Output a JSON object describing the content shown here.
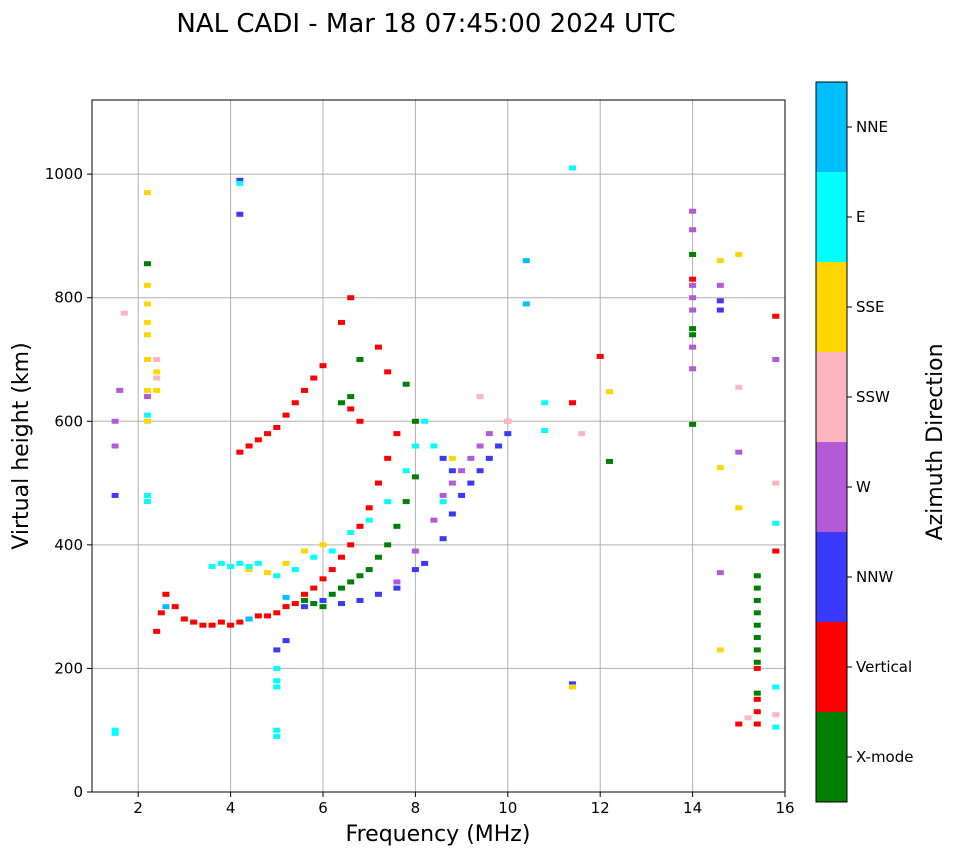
{
  "chart_data": {
    "type": "scatter",
    "title": "NAL CADI - Mar 18 07:45:00 2024 UTC",
    "xlabel": "Frequency (MHz)",
    "ylabel": "Virtual height (km)",
    "xlim": [
      1,
      16
    ],
    "ylim": [
      0,
      1120
    ],
    "xticks": [
      2,
      4,
      6,
      8,
      10,
      12,
      14,
      16
    ],
    "yticks": [
      0,
      200,
      400,
      600,
      800,
      1000
    ],
    "grid": true,
    "colorbar": {
      "label": "Azimuth Direction",
      "categories": [
        {
          "name": "X-mode",
          "color": "#008000"
        },
        {
          "name": "Vertical",
          "color": "#ff0000"
        },
        {
          "name": "NNW",
          "color": "#3a3aff"
        },
        {
          "name": "W",
          "color": "#b35ad6"
        },
        {
          "name": "SSW",
          "color": "#ffb6c1"
        },
        {
          "name": "SSE",
          "color": "#ffd700"
        },
        {
          "name": "E",
          "color": "#00ffff"
        },
        {
          "name": "NNE",
          "color": "#00bfff"
        }
      ]
    },
    "series": [
      {
        "name": "X-mode",
        "points": [
          [
            2.2,
            855
          ],
          [
            5.6,
            310
          ],
          [
            5.8,
            305
          ],
          [
            6.0,
            300
          ],
          [
            6.2,
            320
          ],
          [
            6.4,
            330
          ],
          [
            6.6,
            340
          ],
          [
            6.8,
            350
          ],
          [
            7.0,
            360
          ],
          [
            7.2,
            380
          ],
          [
            7.4,
            400
          ],
          [
            7.6,
            430
          ],
          [
            7.8,
            470
          ],
          [
            8.0,
            510
          ],
          [
            8.0,
            600
          ],
          [
            7.8,
            660
          ],
          [
            6.6,
            640
          ],
          [
            6.4,
            630
          ],
          [
            6.8,
            700
          ],
          [
            14.0,
            870
          ],
          [
            14.0,
            750
          ],
          [
            14.0,
            740
          ],
          [
            14.0,
            595
          ],
          [
            12.2,
            535
          ],
          [
            15.4,
            350
          ],
          [
            15.4,
            330
          ],
          [
            15.4,
            310
          ],
          [
            15.4,
            290
          ],
          [
            15.4,
            270
          ],
          [
            15.4,
            250
          ],
          [
            15.4,
            230
          ],
          [
            15.4,
            210
          ],
          [
            15.4,
            160
          ]
        ]
      },
      {
        "name": "Vertical",
        "points": [
          [
            2.4,
            260
          ],
          [
            2.5,
            290
          ],
          [
            2.6,
            320
          ],
          [
            2.8,
            300
          ],
          [
            3.0,
            280
          ],
          [
            3.2,
            275
          ],
          [
            3.4,
            270
          ],
          [
            3.6,
            270
          ],
          [
            3.8,
            275
          ],
          [
            4.0,
            270
          ],
          [
            4.2,
            275
          ],
          [
            4.4,
            280
          ],
          [
            4.6,
            285
          ],
          [
            4.8,
            285
          ],
          [
            5.0,
            290
          ],
          [
            5.2,
            300
          ],
          [
            5.4,
            305
          ],
          [
            5.6,
            320
          ],
          [
            5.8,
            330
          ],
          [
            6.0,
            345
          ],
          [
            6.2,
            360
          ],
          [
            6.4,
            380
          ],
          [
            6.6,
            400
          ],
          [
            6.8,
            430
          ],
          [
            7.0,
            460
          ],
          [
            7.2,
            500
          ],
          [
            7.4,
            540
          ],
          [
            7.6,
            580
          ],
          [
            4.2,
            550
          ],
          [
            4.4,
            560
          ],
          [
            4.6,
            570
          ],
          [
            4.8,
            580
          ],
          [
            5.0,
            590
          ],
          [
            5.2,
            610
          ],
          [
            5.4,
            630
          ],
          [
            5.6,
            650
          ],
          [
            5.8,
            670
          ],
          [
            6.0,
            690
          ],
          [
            6.4,
            760
          ],
          [
            6.6,
            800
          ],
          [
            7.2,
            720
          ],
          [
            7.4,
            680
          ],
          [
            6.6,
            620
          ],
          [
            6.8,
            600
          ],
          [
            11.4,
            630
          ],
          [
            12.0,
            705
          ],
          [
            14.0,
            830
          ],
          [
            15.4,
            200
          ],
          [
            15.4,
            150
          ],
          [
            15.4,
            130
          ],
          [
            15.4,
            110
          ],
          [
            15.0,
            110
          ],
          [
            15.8,
            770
          ],
          [
            15.8,
            390
          ]
        ]
      },
      {
        "name": "NNW",
        "points": [
          [
            1.5,
            480
          ],
          [
            4.2,
            990
          ],
          [
            4.2,
            935
          ],
          [
            5.0,
            230
          ],
          [
            5.2,
            245
          ],
          [
            5.6,
            300
          ],
          [
            6.0,
            310
          ],
          [
            6.4,
            305
          ],
          [
            6.8,
            310
          ],
          [
            7.2,
            320
          ],
          [
            7.6,
            330
          ],
          [
            8.0,
            360
          ],
          [
            8.2,
            370
          ],
          [
            8.6,
            410
          ],
          [
            8.8,
            450
          ],
          [
            9.0,
            480
          ],
          [
            9.2,
            500
          ],
          [
            9.4,
            520
          ],
          [
            9.6,
            540
          ],
          [
            9.8,
            560
          ],
          [
            10.0,
            580
          ],
          [
            8.6,
            540
          ],
          [
            8.8,
            520
          ],
          [
            14.6,
            795
          ],
          [
            14.6,
            780
          ],
          [
            11.4,
            175
          ]
        ]
      },
      {
        "name": "W",
        "points": [
          [
            1.5,
            560
          ],
          [
            1.5,
            600
          ],
          [
            1.6,
            650
          ],
          [
            2.2,
            640
          ],
          [
            7.6,
            340
          ],
          [
            8.0,
            390
          ],
          [
            8.4,
            440
          ],
          [
            8.6,
            480
          ],
          [
            8.8,
            500
          ],
          [
            9.0,
            520
          ],
          [
            9.2,
            540
          ],
          [
            9.4,
            560
          ],
          [
            9.6,
            580
          ],
          [
            10.0,
            600
          ],
          [
            14.0,
            940
          ],
          [
            14.0,
            910
          ],
          [
            14.0,
            820
          ],
          [
            14.0,
            800
          ],
          [
            14.0,
            780
          ],
          [
            14.0,
            720
          ],
          [
            14.0,
            685
          ],
          [
            14.6,
            820
          ],
          [
            14.6,
            355
          ],
          [
            15.0,
            550
          ],
          [
            15.8,
            700
          ]
        ]
      },
      {
        "name": "SSW",
        "points": [
          [
            1.7,
            775
          ],
          [
            2.4,
            700
          ],
          [
            2.4,
            670
          ],
          [
            9.4,
            640
          ],
          [
            10.0,
            600
          ],
          [
            11.6,
            580
          ],
          [
            15.0,
            655
          ],
          [
            15.8,
            500
          ],
          [
            15.8,
            125
          ],
          [
            15.2,
            120
          ]
        ]
      },
      {
        "name": "SSE",
        "points": [
          [
            2.2,
            970
          ],
          [
            2.2,
            820
          ],
          [
            2.2,
            790
          ],
          [
            2.2,
            760
          ],
          [
            2.2,
            740
          ],
          [
            2.2,
            700
          ],
          [
            2.2,
            650
          ],
          [
            2.2,
            600
          ],
          [
            2.4,
            680
          ],
          [
            2.4,
            650
          ],
          [
            4.4,
            360
          ],
          [
            4.8,
            355
          ],
          [
            5.2,
            370
          ],
          [
            5.6,
            390
          ],
          [
            6.0,
            400
          ],
          [
            8.8,
            540
          ],
          [
            12.2,
            648
          ],
          [
            14.6,
            860
          ],
          [
            14.6,
            525
          ],
          [
            14.6,
            230
          ],
          [
            15.0,
            870
          ],
          [
            15.0,
            460
          ],
          [
            11.4,
            170
          ]
        ]
      },
      {
        "name": "E",
        "points": [
          [
            1.5,
            100
          ],
          [
            1.5,
            95
          ],
          [
            2.2,
            480
          ],
          [
            2.2,
            470
          ],
          [
            2.2,
            610
          ],
          [
            3.6,
            365
          ],
          [
            3.8,
            370
          ],
          [
            4.0,
            365
          ],
          [
            4.2,
            370
          ],
          [
            4.4,
            365
          ],
          [
            4.6,
            370
          ],
          [
            5.0,
            350
          ],
          [
            5.4,
            360
          ],
          [
            5.8,
            380
          ],
          [
            6.2,
            390
          ],
          [
            6.6,
            420
          ],
          [
            7.0,
            440
          ],
          [
            7.4,
            470
          ],
          [
            7.8,
            520
          ],
          [
            8.0,
            560
          ],
          [
            8.2,
            600
          ],
          [
            8.4,
            560
          ],
          [
            8.6,
            470
          ],
          [
            5.0,
            200
          ],
          [
            5.0,
            180
          ],
          [
            5.0,
            170
          ],
          [
            5.0,
            100
          ],
          [
            5.0,
            90
          ],
          [
            4.2,
            985
          ],
          [
            10.8,
            630
          ],
          [
            10.8,
            585
          ],
          [
            11.4,
            1010
          ],
          [
            15.8,
            435
          ],
          [
            15.8,
            170
          ],
          [
            15.8,
            105
          ]
        ]
      },
      {
        "name": "NNE",
        "points": [
          [
            10.4,
            860
          ],
          [
            10.4,
            790
          ],
          [
            2.6,
            300
          ],
          [
            4.4,
            280
          ],
          [
            5.2,
            315
          ]
        ]
      }
    ]
  }
}
